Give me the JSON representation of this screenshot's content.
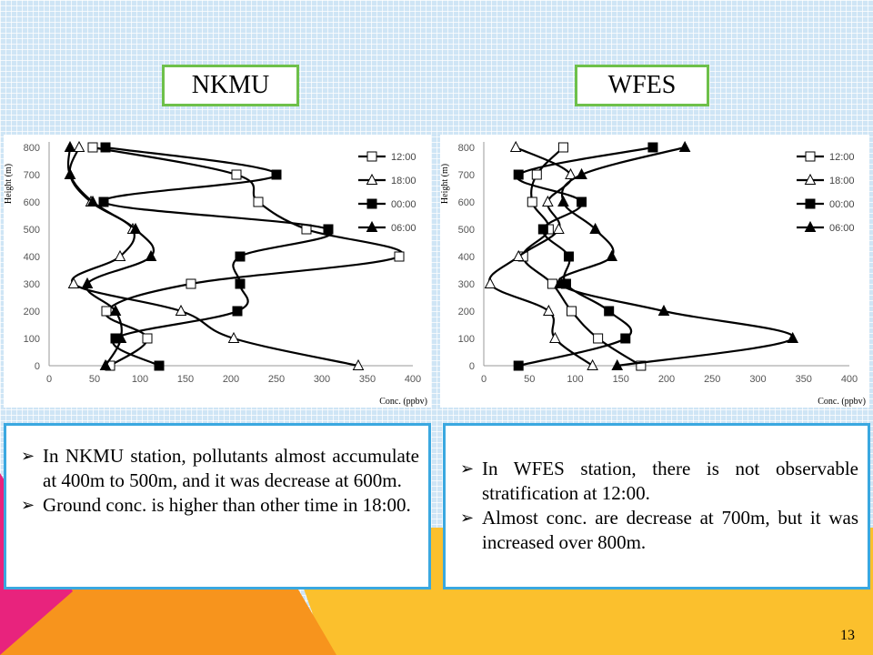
{
  "slide": {
    "page_number": "13",
    "colors": {
      "background": "#cfe5f5",
      "label_border": "#6ec04a",
      "notes_border": "#3aa8e0",
      "decor_magenta": "#e8237d",
      "decor_orange": "#f7941d",
      "decor_yellow": "#fbc02d"
    }
  },
  "labels": {
    "left": "NKMU",
    "right": "WFES"
  },
  "notes": {
    "left": [
      "In NKMU station, pollutants almost accumulate at 400m to 500m, and it was decrease at 600m.",
      "Ground conc. is higher than other time in 18:00."
    ],
    "right": [
      "In WFES station, there is not observable stratification at 12:00.",
      "Almost conc. are decrease at 700m, but it was increased over 800m."
    ]
  },
  "chart_data": [
    {
      "type": "line",
      "station": "NKMU",
      "ylabel": "Height (m)",
      "xlabel": "Conc. (ppbv)",
      "xlim": [
        0,
        400
      ],
      "ylim": [
        0,
        800
      ],
      "xticks": [
        "0",
        "50",
        "100",
        "150",
        "200",
        "250",
        "300",
        "350",
        "400"
      ],
      "yticks": [
        "0",
        "100",
        "200",
        "300",
        "400",
        "500",
        "600",
        "700",
        "800"
      ],
      "legend_position": "right",
      "grid": false,
      "series": [
        {
          "name": "12:00",
          "marker": "open-square",
          "points": [
            [
              67,
              0
            ],
            [
              108,
              100
            ],
            [
              63,
              200
            ],
            [
              156,
              300
            ],
            [
              385,
              400
            ],
            [
              283,
              500
            ],
            [
              230,
              600
            ],
            [
              206,
              700
            ],
            [
              48,
              800
            ]
          ]
        },
        {
          "name": "18:00",
          "marker": "open-triangle",
          "points": [
            [
              340,
              0
            ],
            [
              203,
              100
            ],
            [
              145,
              200
            ],
            [
              27,
              300
            ],
            [
              78,
              400
            ],
            [
              92,
              500
            ],
            [
              46,
              600
            ],
            [
              23,
              700
            ],
            [
              33,
              800
            ]
          ]
        },
        {
          "name": "00:00",
          "marker": "filled-square",
          "points": [
            [
              121,
              0
            ],
            [
              73,
              100
            ],
            [
              207,
              200
            ],
            [
              210,
              300
            ],
            [
              210,
              400
            ],
            [
              307,
              500
            ],
            [
              60,
              600
            ],
            [
              250,
              700
            ],
            [
              62,
              800
            ]
          ]
        },
        {
          "name": "06:00",
          "marker": "filled-triangle",
          "points": [
            [
              62,
              0
            ],
            [
              79,
              100
            ],
            [
              73,
              200
            ],
            [
              42,
              300
            ],
            [
              112,
              400
            ],
            [
              95,
              500
            ],
            [
              48,
              600
            ],
            [
              23,
              700
            ],
            [
              23,
              800
            ]
          ]
        }
      ]
    },
    {
      "type": "line",
      "station": "WFES",
      "ylabel": "Height (m)",
      "xlabel": "Conc. (ppbv)",
      "xlim": [
        0,
        400
      ],
      "ylim": [
        0,
        800
      ],
      "xticks": [
        "0",
        "50",
        "100",
        "150",
        "200",
        "250",
        "300",
        "350",
        "400"
      ],
      "yticks": [
        "0",
        "100",
        "200",
        "300",
        "400",
        "500",
        "600",
        "700",
        "800"
      ],
      "legend_position": "right",
      "grid": false,
      "series": [
        {
          "name": "12:00",
          "marker": "open-square",
          "points": [
            [
              172,
              0
            ],
            [
              125,
              100
            ],
            [
              96,
              200
            ],
            [
              75,
              300
            ],
            [
              43,
              400
            ],
            [
              71,
              500
            ],
            [
              53,
              600
            ],
            [
              58,
              700
            ],
            [
              87,
              800
            ]
          ]
        },
        {
          "name": "18:00",
          "marker": "open-triangle",
          "points": [
            [
              119,
              0
            ],
            [
              78,
              100
            ],
            [
              71,
              200
            ],
            [
              7,
              300
            ],
            [
              38,
              400
            ],
            [
              82,
              500
            ],
            [
              70,
              600
            ],
            [
              95,
              700
            ],
            [
              35,
              800
            ]
          ]
        },
        {
          "name": "00:00",
          "marker": "filled-square",
          "points": [
            [
              38,
              0
            ],
            [
              155,
              100
            ],
            [
              137,
              200
            ],
            [
              90,
              300
            ],
            [
              93,
              400
            ],
            [
              65,
              500
            ],
            [
              107,
              600
            ],
            [
              38,
              700
            ],
            [
              185,
              800
            ]
          ]
        },
        {
          "name": "06:00",
          "marker": "filled-triangle",
          "points": [
            [
              146,
              0
            ],
            [
              338,
              100
            ],
            [
              197,
              200
            ],
            [
              83,
              300
            ],
            [
              140,
              400
            ],
            [
              122,
              500
            ],
            [
              87,
              600
            ],
            [
              107,
              700
            ],
            [
              220,
              800
            ]
          ]
        }
      ]
    }
  ]
}
